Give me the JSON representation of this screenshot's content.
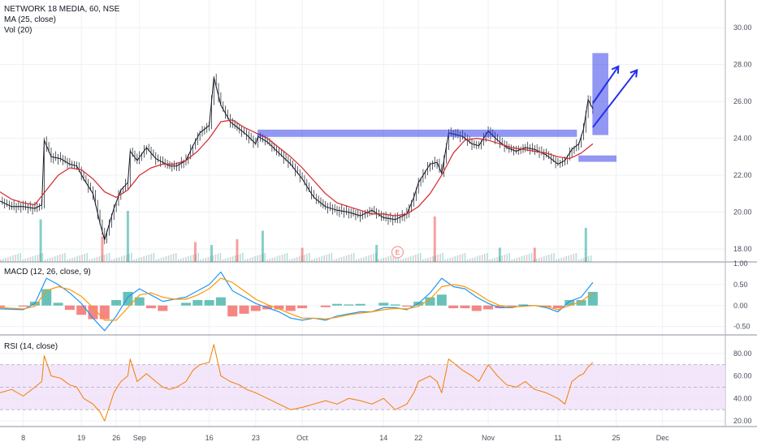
{
  "legend": {
    "symbol": "NETWORK 18 MEDIA, 60, NSE",
    "ma": "MA (25, close)",
    "vol": "Vol (20)",
    "macd": "MACD (12, 26, close, 9)",
    "rsi": "RSI (14, close)"
  },
  "earnings_marker": "E",
  "colors": {
    "up": "#26a69a",
    "down": "#ef5350",
    "ma_line": "#d2262b",
    "macd_line": "#2196f3",
    "signal_line": "#ff9800",
    "rsi_line": "#f57c00",
    "rsi_band": "#eedcf8",
    "annotation": "#2531e8",
    "grid": "#eef0f3"
  },
  "chart_data": [
    {
      "type": "line",
      "name": "price",
      "ylim": [
        17.3,
        31.5
      ],
      "y_ticks": [
        "30.00",
        "28.00",
        "26.00",
        "24.00",
        "22.00",
        "20.00",
        "18.00"
      ],
      "x_ticks": [
        "8",
        "19",
        "26",
        "Sep",
        "16",
        "23",
        "Oct",
        "14",
        "22",
        "Nov",
        "11",
        "25",
        "Dec"
      ],
      "x_tick_pos": [
        1,
        3.5,
        5,
        6,
        9,
        11,
        13,
        16.5,
        18,
        21,
        24,
        26.5,
        28.5
      ],
      "series": [
        {
          "name": "close",
          "x": [
            0,
            0.5,
            1,
            1.5,
            1.8,
            1.9,
            2.2,
            2.6,
            3,
            3.3,
            3.6,
            4,
            4.3,
            4.5,
            4.9,
            5.2,
            5.5,
            5.6,
            5.9,
            6.3,
            6.7,
            7,
            7.3,
            7.6,
            8,
            8.3,
            8.6,
            9,
            9.2,
            9.5,
            9.9,
            10.3,
            10.6,
            11,
            11.1,
            11.5,
            12,
            12.5,
            13,
            13.5,
            14,
            14.5,
            15,
            15.5,
            16,
            16.5,
            17,
            17.5,
            17.8,
            18,
            18.5,
            18.8,
            19,
            19.3,
            19.6,
            19.9,
            20.3,
            20.6,
            21,
            21.4,
            21.8,
            22.2,
            22.6,
            23,
            23.5,
            24,
            24.3,
            24.6,
            24.9,
            25.1,
            25.3,
            25.5
          ],
          "values": [
            20.6,
            20.3,
            20.3,
            20.2,
            20.4,
            23.9,
            23.0,
            22.9,
            22.6,
            22.5,
            21.8,
            21.0,
            19.4,
            18.5,
            20.2,
            21.2,
            21.6,
            23.3,
            22.8,
            23.5,
            22.9,
            22.7,
            22.5,
            22.5,
            22.8,
            23.6,
            24.3,
            24.7,
            27.3,
            25.8,
            24.9,
            24.5,
            24.2,
            23.7,
            24.1,
            23.8,
            23.2,
            22.6,
            21.8,
            20.8,
            20.3,
            20.1,
            20.0,
            19.8,
            20.1,
            19.7,
            19.6,
            19.9,
            20.8,
            21.6,
            22.6,
            22.7,
            22.1,
            24.3,
            24.2,
            24.1,
            23.7,
            23.6,
            24.4,
            23.9,
            23.5,
            23.3,
            23.5,
            23.4,
            23.1,
            22.6,
            22.8,
            23.4,
            23.7,
            24.5,
            26.1,
            25.6
          ]
        },
        {
          "name": "MA (25, close)",
          "x": [
            0,
            0.5,
            1,
            1.5,
            2,
            2.5,
            3,
            3.5,
            4,
            4.5,
            5,
            5.5,
            6,
            6.5,
            7,
            7.5,
            8,
            8.5,
            9,
            9.5,
            10,
            10.5,
            11,
            11.5,
            12,
            12.5,
            13,
            13.5,
            14,
            14.5,
            15,
            15.5,
            16,
            16.5,
            17,
            17.5,
            18,
            18.5,
            19,
            19.5,
            20,
            20.5,
            21,
            21.5,
            22,
            22.5,
            23,
            23.5,
            24,
            24.5,
            25,
            25.5
          ],
          "values": [
            21.1,
            20.7,
            20.5,
            20.4,
            21.2,
            22.0,
            22.4,
            22.3,
            21.8,
            21.1,
            20.8,
            21.2,
            22.0,
            22.4,
            22.6,
            22.6,
            22.8,
            23.3,
            24.0,
            24.9,
            25.0,
            24.6,
            24.3,
            24.0,
            23.5,
            23.0,
            22.4,
            21.7,
            21.0,
            20.5,
            20.3,
            20.1,
            19.9,
            19.9,
            19.8,
            19.9,
            20.3,
            21.0,
            22.0,
            23.2,
            23.9,
            24.0,
            23.9,
            23.7,
            23.5,
            23.4,
            23.3,
            23.2,
            23.0,
            22.9,
            23.2,
            23.7
          ]
        }
      ],
      "volume": {
        "x": [
          1.75,
          4.4,
          5.5,
          8.4,
          9.1,
          10.2,
          11.3,
          13.0,
          16.2,
          18.7,
          21.5,
          23.0,
          25.2
        ],
        "values": [
          0.75,
          0.45,
          0.9,
          0.35,
          0.3,
          0.4,
          0.55,
          0.25,
          0.3,
          0.8,
          0.25,
          0.25,
          0.6
        ]
      }
    },
    {
      "type": "line",
      "name": "MACD (12, 26, close, 9)",
      "ylim": [
        -0.7,
        1.0
      ],
      "y_ticks": [
        "1.00",
        "0.50",
        "0.00",
        "-0.50"
      ],
      "series": [
        {
          "name": "macd",
          "x": [
            0,
            1,
            1.5,
            2,
            2.5,
            3,
            3.5,
            4,
            4.5,
            5,
            5.5,
            6,
            6.5,
            7,
            7.5,
            8,
            8.5,
            9,
            9.5,
            10,
            10.5,
            11,
            11.5,
            12,
            12.5,
            13,
            13.5,
            14,
            14.5,
            15,
            15.5,
            16,
            16.5,
            17,
            17.5,
            18,
            18.5,
            19,
            19.5,
            20,
            20.5,
            21,
            21.5,
            22,
            22.5,
            23,
            23.5,
            24,
            24.5,
            25,
            25.5
          ],
          "values": [
            -0.08,
            -0.1,
            0.05,
            0.65,
            0.5,
            0.3,
            0.05,
            -0.3,
            -0.6,
            -0.25,
            0.2,
            0.4,
            0.25,
            0.1,
            0.15,
            0.2,
            0.35,
            0.5,
            0.8,
            0.35,
            0.2,
            0.05,
            -0.05,
            -0.15,
            -0.3,
            -0.35,
            -0.3,
            -0.35,
            -0.25,
            -0.2,
            -0.15,
            -0.15,
            -0.05,
            -0.05,
            -0.1,
            0.05,
            0.3,
            0.65,
            0.45,
            0.4,
            0.2,
            0.05,
            -0.05,
            -0.05,
            0.0,
            0.0,
            -0.05,
            -0.15,
            0.1,
            0.2,
            0.55
          ]
        },
        {
          "name": "signal",
          "x": [
            0,
            1,
            1.5,
            2,
            2.5,
            3,
            3.5,
            4,
            4.5,
            5,
            5.5,
            6,
            6.5,
            7,
            7.5,
            8,
            8.5,
            9,
            9.5,
            10,
            10.5,
            11,
            11.5,
            12,
            12.5,
            13,
            13.5,
            14,
            14.5,
            15,
            15.5,
            16,
            16.5,
            17,
            17.5,
            18,
            18.5,
            19,
            19.5,
            20,
            20.5,
            21,
            21.5,
            22,
            22.5,
            23,
            23.5,
            24,
            24.5,
            25,
            25.5
          ],
          "values": [
            -0.05,
            -0.08,
            -0.02,
            0.35,
            0.45,
            0.38,
            0.22,
            -0.05,
            -0.35,
            -0.35,
            -0.05,
            0.25,
            0.3,
            0.2,
            0.15,
            0.15,
            0.25,
            0.4,
            0.65,
            0.55,
            0.35,
            0.15,
            0.02,
            -0.08,
            -0.2,
            -0.3,
            -0.3,
            -0.32,
            -0.28,
            -0.22,
            -0.18,
            -0.15,
            -0.1,
            -0.07,
            -0.08,
            -0.02,
            0.15,
            0.45,
            0.5,
            0.45,
            0.3,
            0.12,
            0.0,
            -0.03,
            -0.02,
            0.0,
            -0.02,
            -0.1,
            0.0,
            0.1,
            0.3
          ]
        }
      ]
    },
    {
      "type": "line",
      "name": "RSI (14, close)",
      "ylim": [
        15,
        95
      ],
      "y_ticks": [
        "80.00",
        "60.00",
        "40.00",
        "20.00"
      ],
      "band": [
        30,
        70
      ],
      "series": [
        {
          "name": "rsi",
          "x": [
            0,
            0.5,
            1,
            1.5,
            1.8,
            1.9,
            2.2,
            2.6,
            3,
            3.3,
            3.6,
            4,
            4.3,
            4.5,
            4.9,
            5.2,
            5.5,
            5.6,
            5.9,
            6.3,
            6.7,
            7,
            7.3,
            7.6,
            8,
            8.3,
            8.6,
            9,
            9.2,
            9.5,
            9.9,
            10.3,
            10.6,
            11,
            11.5,
            12,
            12.5,
            13,
            13.5,
            14,
            14.5,
            15,
            15.5,
            16,
            16.5,
            17,
            17.5,
            17.8,
            18,
            18.5,
            18.8,
            19,
            19.3,
            19.6,
            19.9,
            20.3,
            20.6,
            21,
            21.4,
            21.8,
            22.2,
            22.6,
            23,
            23.5,
            24,
            24.3,
            24.6,
            24.9,
            25.1,
            25.3,
            25.5
          ],
          "values": [
            45,
            48,
            42,
            50,
            55,
            78,
            60,
            58,
            52,
            50,
            40,
            35,
            28,
            20,
            45,
            55,
            60,
            75,
            55,
            62,
            55,
            50,
            48,
            50,
            55,
            65,
            70,
            72,
            88,
            60,
            55,
            52,
            48,
            45,
            40,
            35,
            30,
            32,
            35,
            38,
            35,
            40,
            38,
            35,
            40,
            30,
            35,
            45,
            55,
            60,
            55,
            45,
            75,
            70,
            65,
            60,
            55,
            70,
            60,
            52,
            50,
            55,
            48,
            45,
            40,
            35,
            55,
            60,
            62,
            68,
            72
          ]
        }
      ]
    }
  ]
}
